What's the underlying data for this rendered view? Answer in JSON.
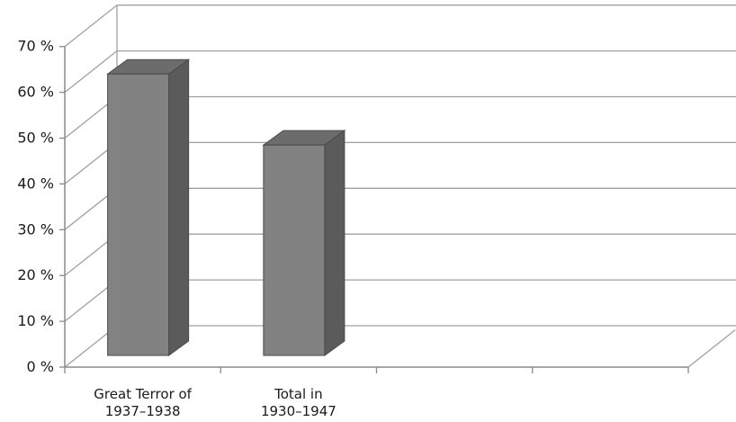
{
  "chart_data": {
    "type": "bar",
    "style": "3d-column",
    "title": "",
    "xlabel": "",
    "ylabel": "",
    "ylim": [
      0,
      70
    ],
    "y_ticks": [
      "0 %",
      "10 %",
      "20 %",
      "30 %",
      "40 %",
      "50 %",
      "60 %",
      "70 %"
    ],
    "categories": [
      [
        "Great Terror of",
        "1937–1938"
      ],
      [
        "Total in",
        "1930–1947"
      ],
      [
        "",
        ""
      ],
      [
        "",
        ""
      ]
    ],
    "values": [
      64,
      48.5,
      null,
      null
    ],
    "grid": true,
    "legend": "none",
    "colors": {
      "bar_front": "#828282",
      "bar_side": "#5b5b5b",
      "bar_top": "#6c6c6c",
      "bar_edge": "#4a4a4a",
      "grid": "#a0a0a0",
      "axis": "#8a8a8a"
    }
  }
}
